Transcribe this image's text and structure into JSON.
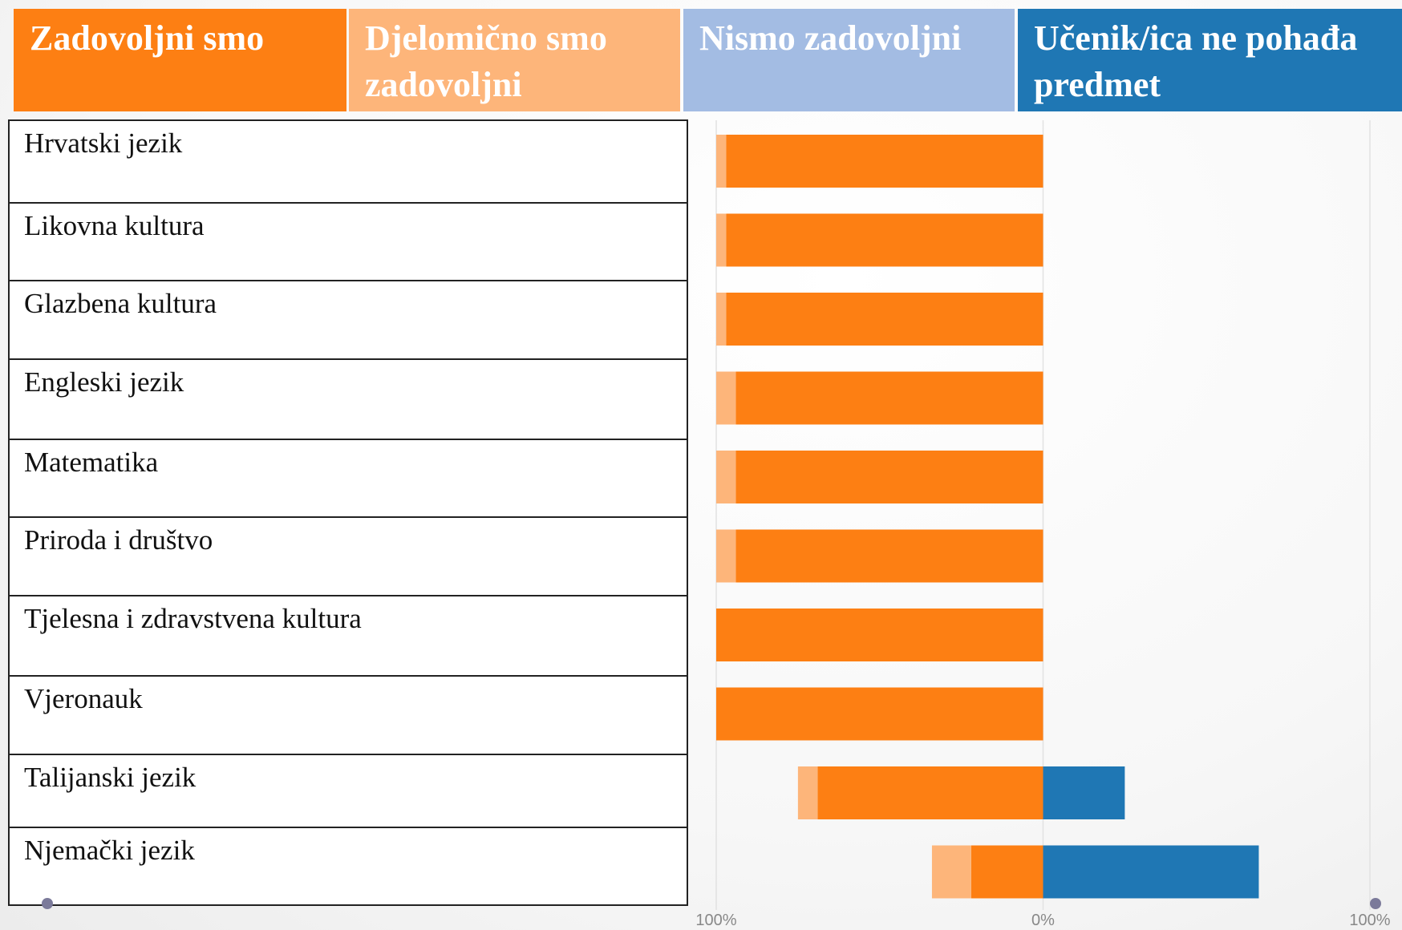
{
  "chart_data": {
    "type": "diverging-bar",
    "categories": [
      "Hrvatski jezik",
      "Likovna kultura",
      "Glazbena kultura",
      "Engleski jezik",
      "Matematika",
      "Priroda i društvo",
      "Tjelesna i zdravstvena kultura",
      "Vjeronauk",
      "Talijanski jezik",
      "Njemački jezik"
    ],
    "series": [
      {
        "name": "Zadovoljni smo",
        "color": "#fd7f13",
        "values": [
          97,
          97,
          97,
          94,
          94,
          94,
          100,
          100,
          69,
          22
        ]
      },
      {
        "name": "Djelomično smo zadovoljni",
        "color": "#fdb57a",
        "values": [
          3,
          3,
          3,
          6,
          6,
          6,
          0,
          0,
          6,
          12
        ]
      },
      {
        "name": "Nismo zadovoljni",
        "color": "#a3bce3",
        "values": [
          0,
          0,
          0,
          0,
          0,
          0,
          0,
          0,
          0,
          0
        ]
      },
      {
        "name": "Učenik/ica ne pohađa predmet",
        "color": "#1f77b4",
        "values": [
          0,
          0,
          0,
          0,
          0,
          0,
          0,
          0,
          25,
          66
        ]
      }
    ],
    "xlim": [
      -100,
      100
    ],
    "xticks": [
      {
        "value": -100,
        "label": "100%"
      },
      {
        "value": 0,
        "label": "0%"
      },
      {
        "value": 100,
        "label": "100%"
      }
    ],
    "grid": true
  }
}
